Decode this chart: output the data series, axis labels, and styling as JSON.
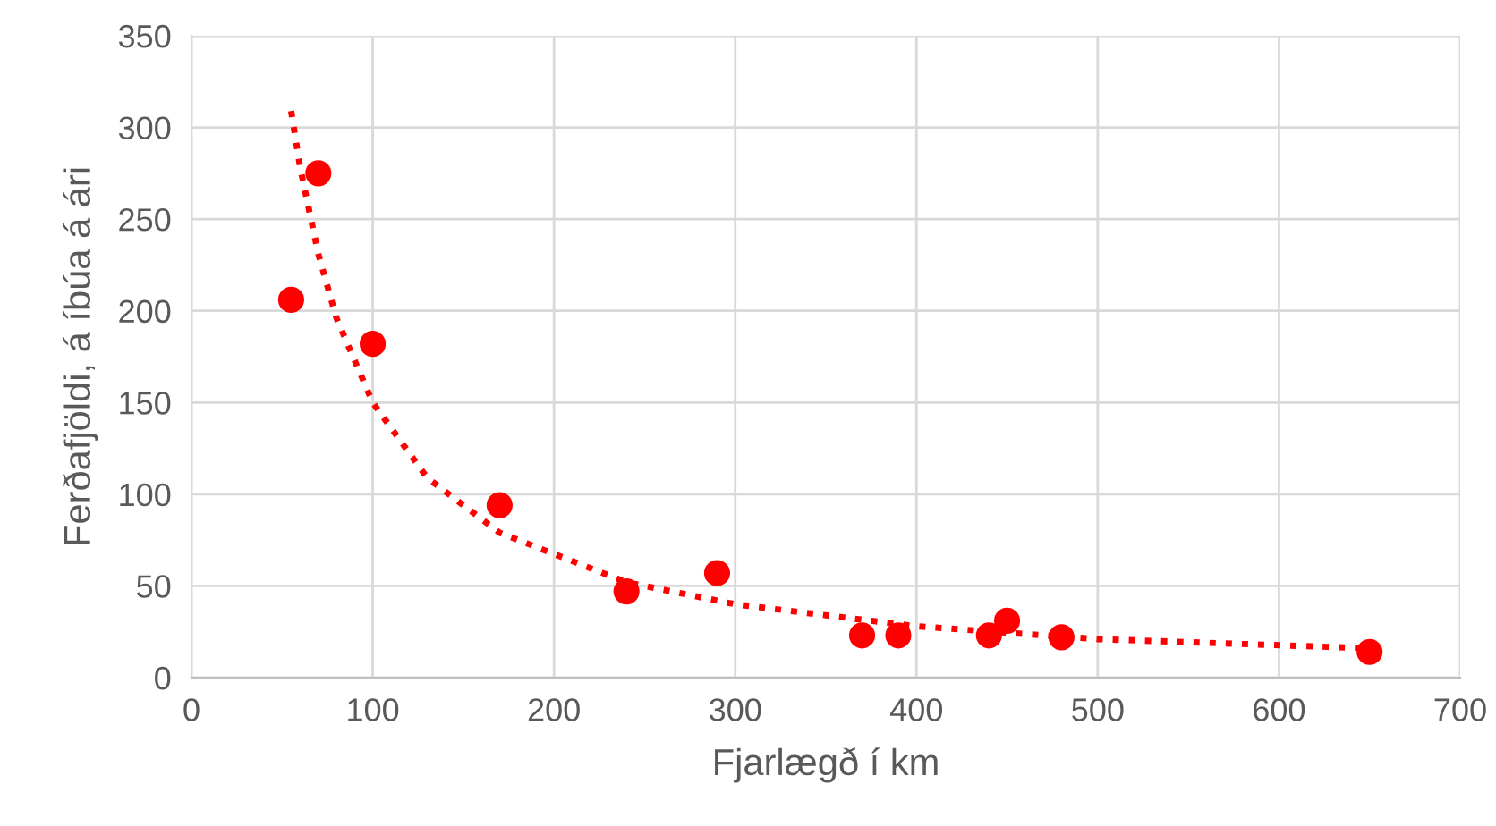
{
  "chart_data": {
    "type": "scatter",
    "xlabel": "Fjarlægð í km",
    "ylabel": "Ferðafjöldi, á íbúa á ári",
    "series": [
      {
        "color": "#ff0000",
        "marker": "circle",
        "x": [
          55,
          70,
          100,
          170,
          240,
          290,
          370,
          390,
          440,
          450,
          480,
          650
        ],
        "values": [
          206,
          275,
          182,
          94,
          47,
          57,
          23,
          23,
          23,
          31,
          22,
          14
        ]
      },
      {
        "type": "line",
        "color": "#ff0000",
        "line_style": "dotted",
        "x": [
          55,
          60,
          70,
          80,
          100,
          130,
          170,
          240,
          300,
          400,
          500,
          650
        ],
        "values": [
          309,
          278,
          231,
          196,
          150,
          109,
          79,
          52,
          40,
          28,
          21,
          16
        ]
      }
    ],
    "xlim": [
      0,
      700
    ],
    "xticks": [
      0,
      100,
      200,
      300,
      400,
      500,
      600,
      700
    ],
    "ylim": [
      0,
      350
    ],
    "yticks": [
      0,
      50,
      100,
      150,
      200,
      250,
      300,
      350
    ],
    "grid": true,
    "legend": false
  }
}
